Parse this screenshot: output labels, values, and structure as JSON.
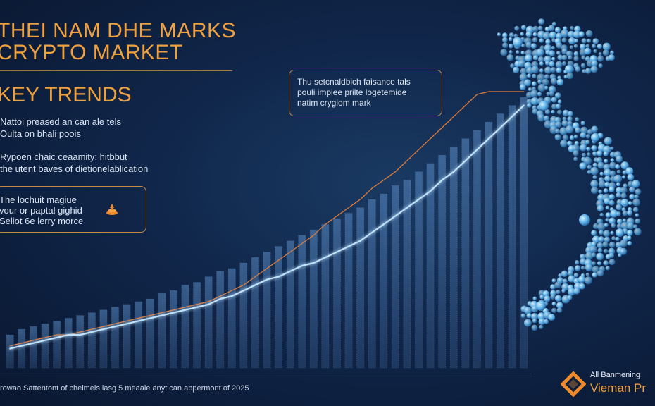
{
  "title_line1": "THEI NAM DHE MARKS",
  "title_line2": "CRYPTO MARKET",
  "section_heading": "KEY TRENDS",
  "trends": [
    {
      "line1": "Nattoi preased an can ale tels",
      "line2": "Oulta on bhali poois"
    },
    {
      "line1": "Rypoen chaic ceaamity: hitbbut",
      "line2": "the utent baves of dietionelablication"
    }
  ],
  "highlight": {
    "line1": "The lochuit magiue",
    "line2": "vour or paptal gighid",
    "line3": "Seliot 6e lerry morce",
    "icon": "coin-stack-icon"
  },
  "callout": {
    "line1": "Thu setcnaldbich faisance tals",
    "line2": "pouli impiee prilte logetemide",
    "line3": "natim crygiom mark"
  },
  "footer_text": "rowao Sattentont of cheimeis lasg 5 meaale anyt can appermont of 2025",
  "brand": {
    "tagline": "All Banmening",
    "name": "Vieman Pr",
    "logo_color": "#f08a2a"
  },
  "colors": {
    "accent": "#f0a03c",
    "bar": "#4a7ab0",
    "line_primary": "#bfe2ff",
    "line_secondary": "#e07b39",
    "map": "#5fb3e8"
  },
  "chart_data": {
    "type": "bar",
    "title": "",
    "xlabel": "",
    "ylabel": "",
    "ylim": [
      0,
      100
    ],
    "grid": false,
    "series": [
      {
        "type": "bar",
        "values": [
          12,
          14,
          15,
          16,
          17,
          18,
          19,
          20,
          21,
          22,
          23,
          24,
          25,
          27,
          28,
          30,
          31,
          33,
          35,
          36,
          38,
          40,
          42,
          44,
          46,
          48,
          50,
          52,
          54,
          56,
          58,
          61,
          63,
          66,
          68,
          71,
          74,
          77,
          80,
          83,
          86,
          89,
          92,
          95,
          98
        ]
      },
      {
        "type": "line",
        "values": [
          7,
          8,
          9,
          10,
          11,
          12,
          12,
          13,
          14,
          15,
          16,
          17,
          18,
          19,
          20,
          21,
          22,
          23,
          25,
          26,
          28,
          30,
          32,
          33,
          35,
          37,
          38,
          40,
          42,
          44,
          46,
          49,
          52,
          55,
          58,
          61,
          64,
          68,
          71,
          75,
          79,
          83,
          87,
          91,
          95
        ]
      },
      {
        "type": "line",
        "values": [
          8,
          9,
          10,
          11,
          12,
          12,
          13,
          14,
          15,
          16,
          17,
          18,
          19,
          20,
          21,
          22,
          23,
          24,
          26,
          28,
          30,
          33,
          36,
          39,
          42,
          45,
          48,
          52,
          55,
          58,
          61,
          65,
          68,
          71,
          75,
          79,
          83,
          87,
          91,
          95,
          99,
          100,
          100,
          100,
          100
        ]
      }
    ]
  }
}
